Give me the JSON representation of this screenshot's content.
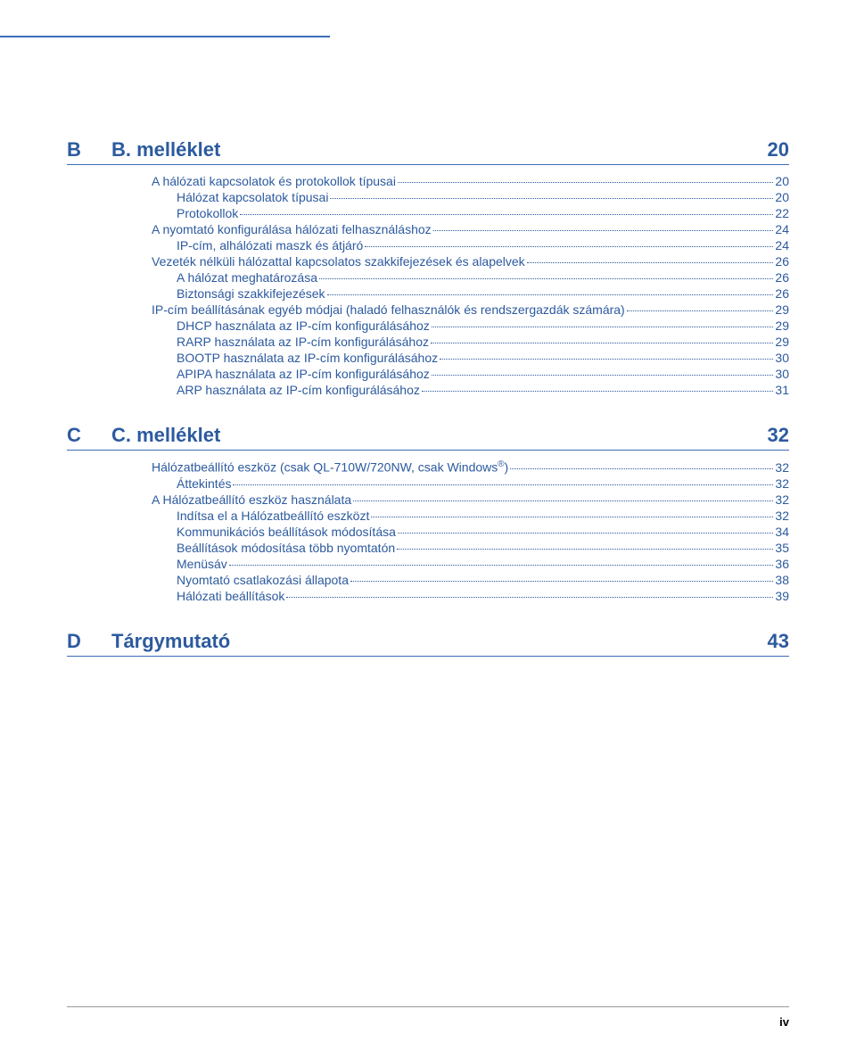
{
  "footer_page": "iv",
  "colors": {
    "accent": "#3b6db5",
    "heading": "#2c5a9f",
    "link": "#2c5a9f",
    "background": "#ffffff"
  },
  "fonts": {
    "family": "Arial, Helvetica, sans-serif",
    "heading_size_pt": 16,
    "body_size_pt": 10
  },
  "sections": [
    {
      "letter": "B",
      "title": "B. melléklet",
      "page": "20",
      "items": [
        {
          "label": "A hálózati kapcsolatok és protokollok típusai",
          "page": "20",
          "sub": false
        },
        {
          "label": "Hálózat kapcsolatok típusai",
          "page": "20",
          "sub": true
        },
        {
          "label": "Protokollok",
          "page": "22",
          "sub": true
        },
        {
          "label": "A nyomtató konfigurálása hálózati felhasználáshoz",
          "page": "24",
          "sub": false
        },
        {
          "label": "IP-cím, alhálózati maszk és átjáró",
          "page": "24",
          "sub": true
        },
        {
          "label": "Vezeték nélküli hálózattal kapcsolatos szakkifejezések és alapelvek",
          "page": "26",
          "sub": false
        },
        {
          "label": "A hálózat meghatározása",
          "page": "26",
          "sub": true
        },
        {
          "label": "Biztonsági szakkifejezések",
          "page": "26",
          "sub": true
        },
        {
          "label": "IP-cím beállításának egyéb módjai (haladó felhasználók és rendszergazdák számára)",
          "page": "29",
          "sub": false
        },
        {
          "label": "DHCP használata az IP-cím konfigurálásához",
          "page": "29",
          "sub": true
        },
        {
          "label": "RARP használata az IP-cím konfigurálásához",
          "page": "29",
          "sub": true
        },
        {
          "label": "BOOTP használata az IP-cím konfigurálásához",
          "page": "30",
          "sub": true
        },
        {
          "label": "APIPA használata az IP-cím konfigurálásához",
          "page": "30",
          "sub": true
        },
        {
          "label": "ARP használata az IP-cím konfigurálásához",
          "page": "31",
          "sub": true
        }
      ]
    },
    {
      "letter": "C",
      "title": "C. melléklet",
      "page": "32",
      "items": [
        {
          "label_html": "Hálózatbeállító eszköz (csak QL-710W/720NW, csak Windows<sup>®</sup>)",
          "label": "Hálózatbeállító eszköz (csak QL-710W/720NW, csak Windows®)",
          "page": "32",
          "sub": false
        },
        {
          "label": "Áttekintés",
          "page": "32",
          "sub": true
        },
        {
          "label": "A Hálózatbeállító eszköz használata",
          "page": "32",
          "sub": false
        },
        {
          "label": "Indítsa el a Hálózatbeállító eszközt",
          "page": "32",
          "sub": true
        },
        {
          "label": "Kommunikációs beállítások módosítása",
          "page": "34",
          "sub": true
        },
        {
          "label": "Beállítások módosítása több nyomtatón",
          "page": "35",
          "sub": true
        },
        {
          "label": "Menüsáv",
          "page": "36",
          "sub": true
        },
        {
          "label": "Nyomtató csatlakozási állapota",
          "page": "38",
          "sub": true
        },
        {
          "label": "Hálózati beállítások",
          "page": "39",
          "sub": true
        }
      ]
    },
    {
      "letter": "D",
      "title": "Tárgymutató",
      "page": "43",
      "items": []
    }
  ]
}
